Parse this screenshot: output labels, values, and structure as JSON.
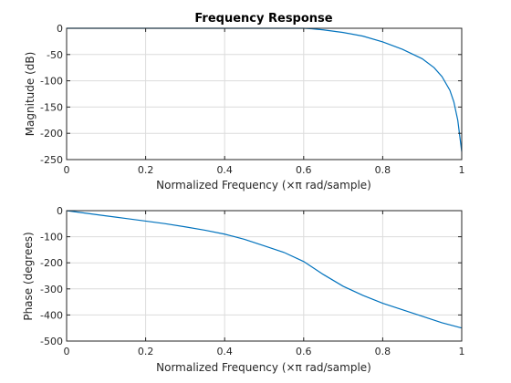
{
  "chart_data": [
    {
      "type": "line",
      "title": "Frequency Response",
      "xlabel": "Normalized Frequency  (×π rad/sample)",
      "ylabel": "Magnitude (dB)",
      "xlim": [
        0,
        1
      ],
      "ylim": [
        -250,
        0
      ],
      "grid": true,
      "xticks": [
        0,
        0.2,
        0.4,
        0.6,
        0.8,
        1
      ],
      "xtick_labels": [
        "0",
        "0.2",
        "0.4",
        "0.6",
        "0.8",
        "1"
      ],
      "yticks": [
        0,
        -50,
        -100,
        -150,
        -200,
        -250
      ],
      "ytick_labels": [
        "0",
        "-50",
        "-100",
        "-150",
        "-200",
        "-250"
      ],
      "series": [
        {
          "color": "#0072bd",
          "x": [
            0,
            0.1,
            0.2,
            0.3,
            0.4,
            0.5,
            0.55,
            0.6,
            0.62,
            0.65,
            0.7,
            0.75,
            0.8,
            0.85,
            0.9,
            0.93,
            0.95,
            0.97,
            0.98,
            0.99,
            0.995,
            1.0
          ],
          "y": [
            0,
            0,
            0,
            0,
            0,
            0,
            0,
            0,
            -1,
            -3,
            -8,
            -15,
            -26,
            -40,
            -58,
            -75,
            -92,
            -118,
            -140,
            -175,
            -205,
            -235
          ]
        }
      ]
    },
    {
      "type": "line",
      "title": "",
      "xlabel": "Normalized Frequency  (×π rad/sample)",
      "ylabel": "Phase (degrees)",
      "xlim": [
        0,
        1
      ],
      "ylim": [
        -500,
        0
      ],
      "grid": true,
      "xticks": [
        0,
        0.2,
        0.4,
        0.6,
        0.8,
        1
      ],
      "xtick_labels": [
        "0",
        "0.2",
        "0.4",
        "0.6",
        "0.8",
        "1"
      ],
      "yticks": [
        0,
        -100,
        -200,
        -300,
        -400,
        -500
      ],
      "ytick_labels": [
        "0",
        "-100",
        "-200",
        "-300",
        "-400",
        "-500"
      ],
      "series": [
        {
          "color": "#0072bd",
          "x": [
            0,
            0.05,
            0.1,
            0.15,
            0.2,
            0.25,
            0.3,
            0.35,
            0.4,
            0.45,
            0.5,
            0.55,
            0.6,
            0.65,
            0.7,
            0.75,
            0.8,
            0.85,
            0.9,
            0.95,
            1.0
          ],
          "y": [
            0,
            -10,
            -20,
            -30,
            -40,
            -50,
            -62,
            -75,
            -90,
            -110,
            -135,
            -160,
            -195,
            -245,
            -290,
            -325,
            -355,
            -380,
            -405,
            -430,
            -450
          ]
        }
      ]
    }
  ]
}
